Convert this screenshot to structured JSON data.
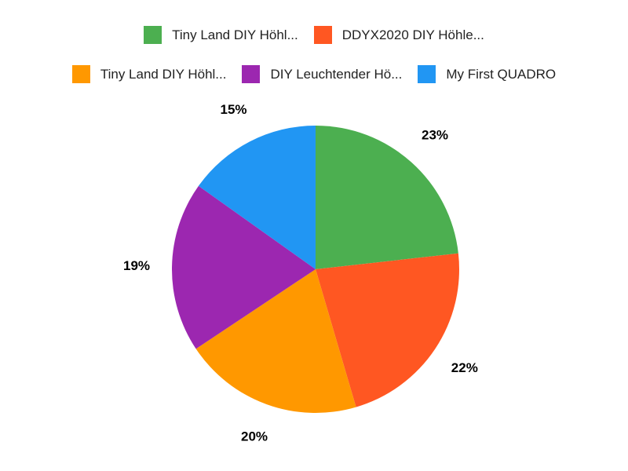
{
  "chart_data": {
    "type": "pie",
    "title": "",
    "categories": [
      "Tiny Land DIY Höhl...",
      "DDYX2020 DIY Höhle...",
      "Tiny Land DIY Höhl...",
      "DIY Leuchtender Hö...",
      "My First QUADRO"
    ],
    "values": [
      23,
      22,
      20,
      19,
      15
    ],
    "value_unit": "%",
    "slice_labels": [
      "23%",
      "22%",
      "20%",
      "19%",
      "15%"
    ],
    "colors": [
      "#4CAF50",
      "#FF5722",
      "#FF9800",
      "#9C27B0",
      "#2196F3"
    ],
    "start_angle_deg": 0,
    "direction": "clockwise",
    "slice_label_position": "outside",
    "legend_position": "top",
    "legend_rows": [
      [
        0,
        1
      ],
      [
        2,
        3,
        4
      ]
    ],
    "background_color": "#ffffff",
    "label_text_color": "#000000",
    "legend_text_color": "#222222"
  }
}
